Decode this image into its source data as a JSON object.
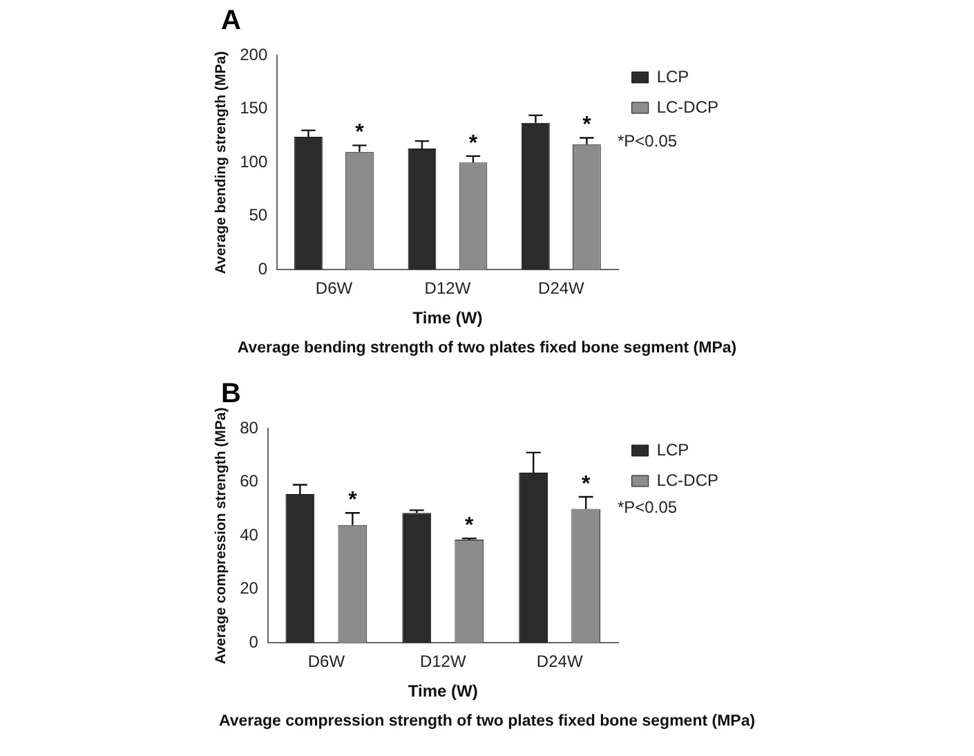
{
  "chart_data": [
    {
      "type": "bar",
      "title": "A",
      "xlabel": "Time (W)",
      "ylabel": "Average bending strength (MPa)",
      "categories": [
        "D6W",
        "D12W",
        "D24W"
      ],
      "series": [
        {
          "name": "LCP",
          "color": "#2b2b2b",
          "values": [
            124,
            113,
            137
          ],
          "errors": [
            [
              124,
              130
            ],
            [
              113,
              120
            ],
            [
              137,
              144
            ]
          ]
        },
        {
          "name": "LC-DCP",
          "color": "#8c8c8c",
          "values": [
            110,
            100,
            117
          ],
          "errors": [
            [
              110,
              116
            ],
            [
              100,
              106
            ],
            [
              117,
              123
            ]
          ]
        }
      ],
      "ylim": [
        0,
        200
      ],
      "yticks": [
        0,
        50,
        100,
        150,
        200
      ],
      "grid": false,
      "legend": "right",
      "annotations": [
        "*P<0.05",
        "Average bending strength of two plates fixed bone segment (MPa)",
        "*",
        "*",
        "*"
      ]
    },
    {
      "type": "bar",
      "title": "B",
      "xlabel": "Time (W)",
      "ylabel": "Average compression strength (MPa)",
      "categories": [
        "D6W",
        "D12W",
        "D24W"
      ],
      "series": [
        {
          "name": "LCP",
          "color": "#2b2b2b",
          "values": [
            55.5,
            48.5,
            63.5
          ],
          "errors": [
            [
              55.5,
              59
            ],
            [
              48.5,
              49.5
            ],
            [
              63.5,
              71
            ]
          ]
        },
        {
          "name": "LC-DCP",
          "color": "#8c8c8c",
          "values": [
            44,
            38.5,
            50
          ],
          "errors": [
            [
              44,
              48.5
            ],
            [
              38.5,
              39
            ],
            [
              50,
              54.5
            ]
          ]
        }
      ],
      "ylim": [
        0,
        80
      ],
      "yticks": [
        0,
        20,
        40,
        60,
        80
      ],
      "grid": false,
      "legend": "right",
      "annotations": [
        "*P<0.05",
        "Average compression strength of two plates fixed bone segment (MPa)",
        "*",
        "*",
        "*"
      ]
    }
  ]
}
